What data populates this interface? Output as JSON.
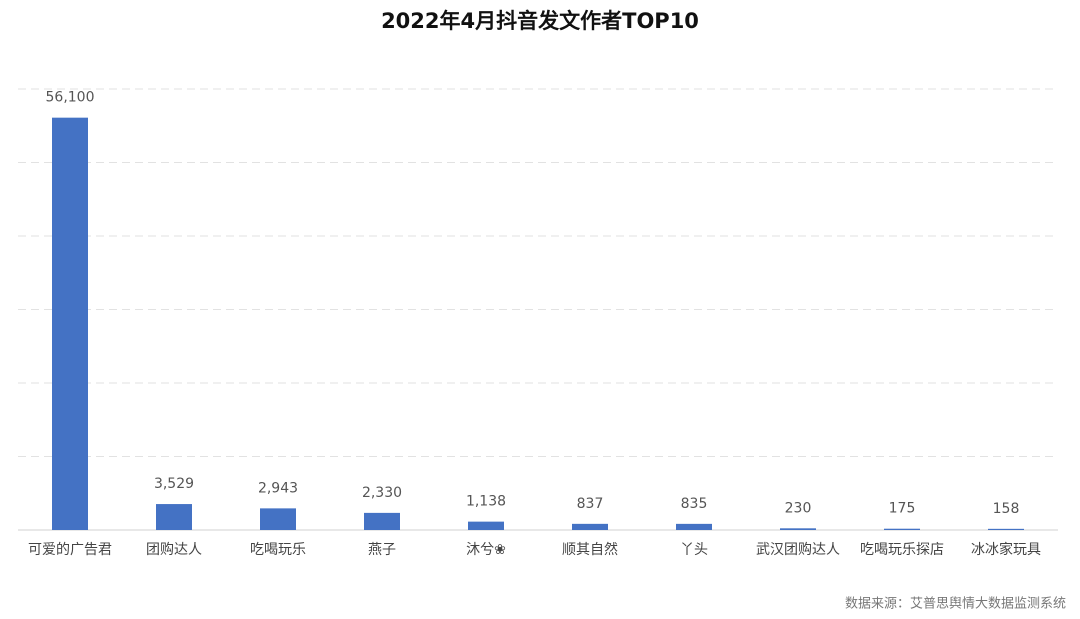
{
  "chart_data": {
    "type": "bar",
    "title": "2022年4月抖音发文作者TOP10",
    "categories": [
      "可爱的广告君",
      "团购达人",
      "吃喝玩乐",
      "燕子",
      "沐兮❀",
      "顺其自然",
      "丫头",
      "武汉团购达人",
      "吃喝玩乐探店",
      "冰冰家玩具"
    ],
    "values": [
      56100,
      3529,
      2943,
      2330,
      1138,
      837,
      835,
      230,
      175,
      158
    ],
    "value_labels": [
      "56,100",
      "3,529",
      "2,943",
      "2,330",
      "1,138",
      "837",
      "835",
      "230",
      "175",
      "158"
    ],
    "color": "#4472c4",
    "ylim": [
      0,
      60000
    ],
    "yticks": [
      0,
      10000,
      20000,
      30000,
      40000,
      50000,
      60000
    ],
    "grid": true,
    "source": "数据来源：艾普思舆情大数据监测系统"
  }
}
